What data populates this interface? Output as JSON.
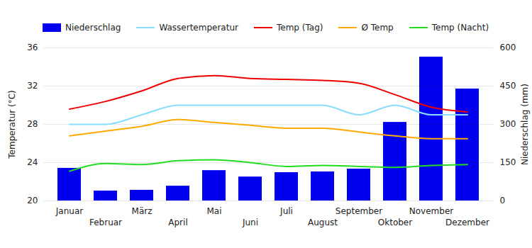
{
  "chart_data": {
    "type": "bar",
    "categories": [
      "Januar",
      "Februar",
      "März",
      "April",
      "Mai",
      "Juni",
      "Juli",
      "August",
      "September",
      "Oktober",
      "November",
      "Dezember"
    ],
    "series": [
      {
        "name": "Niederschlag",
        "type": "bar",
        "axis": "y2",
        "color": "#0000ee",
        "values": [
          128,
          39,
          42,
          58,
          119,
          94,
          111,
          114,
          125,
          308,
          564,
          439
        ]
      },
      {
        "name": "Wassertemperatur",
        "type": "line",
        "color": "#88ddff",
        "values": [
          28.0,
          28.0,
          29.0,
          30.0,
          30.0,
          30.0,
          30.0,
          30.0,
          29.0,
          30.0,
          29.0,
          29.0
        ]
      },
      {
        "name": "Temp (Tag)",
        "type": "line",
        "color": "#ee0000",
        "values": [
          29.6,
          30.4,
          31.5,
          32.8,
          33.1,
          32.8,
          32.7,
          32.6,
          32.3,
          31.1,
          29.8,
          29.3
        ]
      },
      {
        "name": "Ø Temp",
        "type": "line",
        "color": "#ffaa00",
        "values": [
          26.8,
          27.3,
          27.8,
          28.5,
          28.2,
          27.9,
          27.6,
          27.6,
          27.2,
          26.8,
          26.5,
          26.5
        ]
      },
      {
        "name": "Temp (Nacht)",
        "type": "line",
        "color": "#22dd22",
        "values": [
          23.1,
          23.9,
          23.8,
          24.2,
          24.3,
          24.0,
          23.6,
          23.7,
          23.6,
          23.5,
          23.7,
          23.8
        ]
      }
    ],
    "ylabel": "Temperatur (°C)",
    "y2label": "Niederschlag (mm)",
    "ylim": [
      20,
      36
    ],
    "yticks": [
      20,
      24,
      28,
      32,
      36
    ],
    "y2lim": [
      0,
      600
    ],
    "y2ticks": [
      0,
      150,
      300,
      450,
      600
    ],
    "grid": true,
    "legend": "top"
  }
}
